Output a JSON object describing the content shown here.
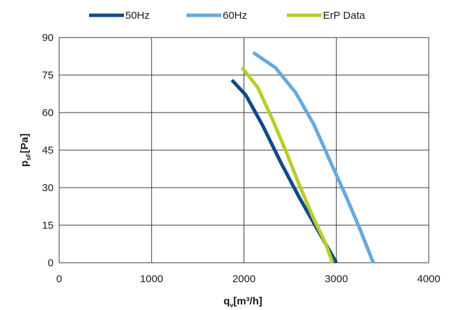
{
  "chart_data": {
    "type": "line",
    "x_ticks": [
      0,
      1000,
      2000,
      3000,
      4000
    ],
    "y_ticks": [
      0,
      15,
      30,
      45,
      60,
      75,
      90
    ],
    "xlim": [
      0,
      4000
    ],
    "ylim": [
      0,
      90
    ],
    "grid": true,
    "legend_position": "top-center",
    "xlabel": {
      "main": "q",
      "sub": "v",
      "rest": "[m³/h]"
    },
    "ylabel": {
      "main": "p",
      "sub": "sF",
      "rest": "[Pa]"
    },
    "series": [
      {
        "name": "50Hz",
        "color": "#0d4a87",
        "points": [
          [
            1870,
            73
          ],
          [
            2020,
            67
          ],
          [
            2200,
            55
          ],
          [
            2400,
            40
          ],
          [
            2600,
            26
          ],
          [
            2800,
            13
          ],
          [
            3000,
            0
          ]
        ]
      },
      {
        "name": "60Hz",
        "color": "#66a9dd",
        "points": [
          [
            2100,
            84
          ],
          [
            2340,
            78
          ],
          [
            2560,
            68
          ],
          [
            2760,
            55
          ],
          [
            2940,
            40
          ],
          [
            3100,
            27
          ],
          [
            3250,
            14
          ],
          [
            3400,
            0
          ]
        ]
      },
      {
        "name": "ErP Data",
        "color": "#b9cc2e",
        "points": [
          [
            1980,
            78
          ],
          [
            2150,
            70
          ],
          [
            2300,
            58
          ],
          [
            2450,
            45
          ],
          [
            2600,
            31
          ],
          [
            2750,
            18
          ],
          [
            2880,
            8
          ],
          [
            2960,
            0
          ]
        ]
      }
    ]
  }
}
